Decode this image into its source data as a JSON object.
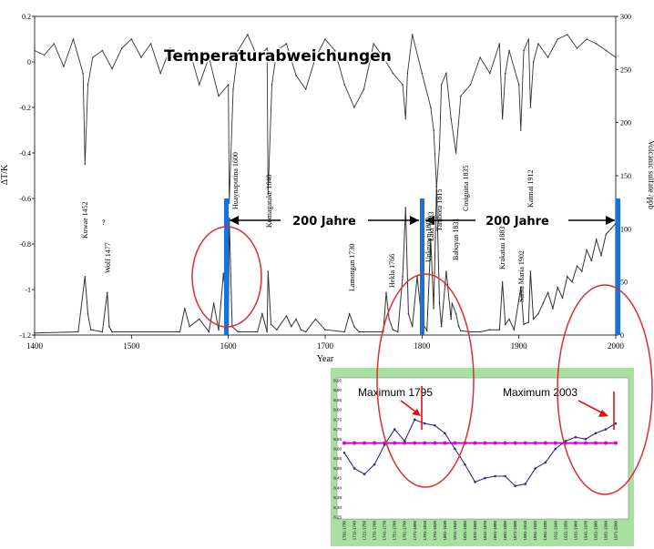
{
  "chart_data": [
    {
      "type": "line",
      "title": "Temperaturabweichungen",
      "xlabel": "Year",
      "ylabel": "ΔT/K",
      "y2label": "Volcanic sulfate /ppb",
      "xlim": [
        1400,
        2000
      ],
      "ylim": [
        -1.2,
        0.2
      ],
      "y2lim": [
        0,
        300
      ],
      "x_ticks": [
        "1400",
        "1500",
        "1600",
        "1700",
        "1800",
        "1900",
        "2000"
      ],
      "y_ticks": [
        "0.2",
        "0",
        "-0.2",
        "-0.4",
        "-0.6",
        "-0.8",
        "-1",
        "-1.2"
      ],
      "y2_ticks": [
        "300",
        "250",
        "200",
        "150",
        "100",
        "50",
        "0"
      ],
      "series": [
        {
          "name": "",
          "x": [
            1400,
            1410,
            1420,
            1430,
            1440,
            1450,
            1452,
            1455,
            1460,
            1470,
            1480,
            1490,
            1500,
            1510,
            1520,
            1530,
            1540,
            1550,
            1560,
            1570,
            1580,
            1590,
            1600,
            1601,
            1605,
            1610,
            1620,
            1630,
            1640,
            1641,
            1645,
            1650,
            1660,
            1670,
            1680,
            1690,
            1700,
            1710,
            1720,
            1730,
            1740,
            1750,
            1760,
            1770,
            1780,
            1783,
            1785,
            1790,
            1800,
            1809,
            1812,
            1815,
            1818,
            1820,
            1825,
            1830,
            1835,
            1840,
            1850,
            1860,
            1870,
            1880,
            1883,
            1886,
            1890,
            1900,
            1902,
            1905,
            1910,
            1912,
            1915,
            1920,
            1930,
            1940,
            1950,
            1960,
            1970,
            1980,
            1990,
            2000
          ],
          "y": [
            0.05,
            0.03,
            0.08,
            -0.02,
            0.1,
            -0.05,
            -0.45,
            -0.1,
            0.02,
            0.05,
            -0.03,
            0.06,
            0.1,
            0.02,
            0.08,
            -0.05,
            0.06,
            0.03,
            0.05,
            -0.1,
            0.02,
            -0.15,
            -0.1,
            -0.62,
            -0.12,
            0.05,
            0.12,
            0.02,
            0.06,
            -0.58,
            -0.1,
            0.05,
            0.08,
            -0.06,
            -0.12,
            0.02,
            0.1,
            0.05,
            -0.1,
            -0.2,
            -0.12,
            0.08,
            0.02,
            -0.05,
            -0.1,
            -0.25,
            -0.05,
            0.12,
            -0.05,
            -0.2,
            -0.3,
            -0.55,
            -0.38,
            -0.1,
            -0.05,
            -0.25,
            -0.4,
            -0.15,
            -0.1,
            0.02,
            -0.05,
            0.08,
            -0.25,
            -0.05,
            0.05,
            -0.1,
            -0.3,
            0.05,
            0.1,
            -0.2,
            0.0,
            0.08,
            0.02,
            0.1,
            0.12,
            0.06,
            0.1,
            0.08,
            0.05,
            0.02
          ]
        },
        {
          "name": "",
          "axis": "right",
          "x": [
            1400,
            1445,
            1452,
            1455,
            1458,
            1470,
            1475,
            1477,
            1480,
            1550,
            1555,
            1560,
            1570,
            1580,
            1585,
            1590,
            1595,
            1600,
            1601,
            1604,
            1610,
            1630,
            1635,
            1640,
            1641,
            1644,
            1650,
            1660,
            1665,
            1670,
            1675,
            1680,
            1690,
            1700,
            1720,
            1725,
            1730,
            1735,
            1740,
            1760,
            1763,
            1766,
            1770,
            1775,
            1780,
            1783,
            1786,
            1790,
            1795,
            1800,
            1805,
            1809,
            1812,
            1815,
            1818,
            1820,
            1825,
            1830,
            1831,
            1835,
            1838,
            1840,
            1850,
            1860,
            1870,
            1880,
            1883,
            1886,
            1890,
            1895,
            1902,
            1905,
            1910,
            1912,
            1915,
            1920,
            1925,
            1930,
            1935,
            1940,
            1945,
            1950,
            1955,
            1960,
            1965,
            1970,
            1975,
            1980,
            1985,
            1990,
            1995,
            2000
          ],
          "y": [
            2,
            3,
            55,
            20,
            5,
            3,
            40,
            8,
            3,
            3,
            25,
            8,
            15,
            3,
            30,
            5,
            58,
            10,
            110,
            8,
            3,
            3,
            20,
            3,
            60,
            10,
            5,
            18,
            8,
            15,
            5,
            3,
            15,
            5,
            3,
            20,
            8,
            3,
            3,
            3,
            40,
            15,
            5,
            3,
            55,
            120,
            20,
            8,
            55,
            12,
            4,
            90,
            25,
            140,
            30,
            8,
            60,
            15,
            30,
            20,
            8,
            4,
            3,
            3,
            5,
            5,
            50,
            10,
            15,
            5,
            45,
            10,
            12,
            60,
            15,
            20,
            30,
            40,
            25,
            45,
            35,
            55,
            50,
            65,
            60,
            80,
            70,
            90,
            75,
            95,
            100,
            105
          ]
        }
      ],
      "annotations": [
        "Kuwae 1452",
        "?",
        "Wolf 1477",
        "Huaynaputina 1600",
        "Komagatake 1640",
        "Lamongan 1730",
        "Hekla 1766",
        "Laki 1783",
        "Unknown 1809",
        "Tambora 1815",
        "Babuyan 1831",
        "Cosiguina 1835",
        "Krakatau 1883",
        "Santa Maria 1902",
        "Katmai 1912"
      ],
      "period_labels": [
        "200 Jahre",
        "200 Jahre"
      ]
    },
    {
      "type": "line",
      "title": "",
      "annotations": [
        "Maximum 1795",
        "Maximum 2003"
      ],
      "y_ticks": [
        "8,95",
        "8,90",
        "8,85",
        "8,80",
        "8,75",
        "8,70",
        "8,65",
        "8,60",
        "8,55",
        "8,50",
        "8,45",
        "8,40",
        "8,35",
        "8,30",
        "8,25"
      ],
      "ylim": [
        8.25,
        8.95
      ],
      "categories": [
        "1701-1730",
        "1711-1740",
        "1721-1750",
        "1731-1760",
        "1741-1770",
        "1751-1780",
        "1761-1790",
        "1771-1800",
        "1781-1810",
        "1791-1820",
        "1801-1830",
        "1811-1840",
        "1821-1850",
        "1831-1860",
        "1841-1870",
        "1851-1880",
        "1861-1890",
        "1871-1900",
        "1881-1910",
        "1891-1920",
        "1901-1930",
        "1911-1940",
        "1921-1950",
        "1931-1960",
        "1941-1970",
        "1951-1980",
        "1961-1990",
        "1971-2000"
      ],
      "series": [
        {
          "name": "",
          "values": [
            8.58,
            8.5,
            8.47,
            8.52,
            8.62,
            8.7,
            8.64,
            8.75,
            8.73,
            8.72,
            8.68,
            8.6,
            8.52,
            8.43,
            8.45,
            8.46,
            8.46,
            8.41,
            8.42,
            8.5,
            8.53,
            8.6,
            8.64,
            8.66,
            8.65,
            8.68,
            8.7,
            8.73
          ]
        },
        {
          "name": "",
          "values": [
            8.63,
            8.63,
            8.63,
            8.63,
            8.63,
            8.63,
            8.63,
            8.63,
            8.63,
            8.63,
            8.63,
            8.63,
            8.63,
            8.63,
            8.63,
            8.63,
            8.63,
            8.63,
            8.63,
            8.63,
            8.63,
            8.63,
            8.63,
            8.63,
            8.63,
            8.63,
            8.63,
            8.63
          ]
        }
      ]
    }
  ],
  "colors": {
    "main_line": "#333333",
    "marker_bar": "#1e6fd9",
    "ellipse": "#d93030",
    "inset_bg": "#a8e0a0",
    "inset_line": "#2c2c8c",
    "mean_line": "#dd00dd",
    "arrow": "#e01010"
  }
}
